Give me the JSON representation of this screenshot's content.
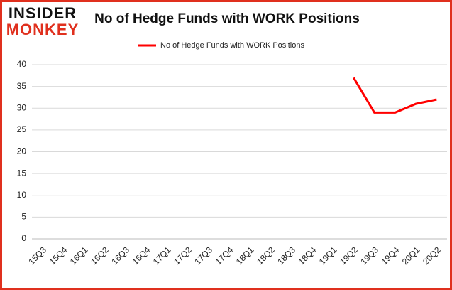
{
  "logo": {
    "line1": "INSIDER",
    "line2": "MONKEY"
  },
  "chart_data": {
    "type": "line",
    "title": "No of Hedge Funds with WORK Positions",
    "categories": [
      "15Q3",
      "15Q4",
      "16Q1",
      "16Q2",
      "16Q3",
      "16Q4",
      "17Q1",
      "17Q2",
      "17Q3",
      "17Q4",
      "18Q1",
      "18Q2",
      "18Q3",
      "18Q4",
      "19Q1",
      "19Q2",
      "19Q3",
      "19Q4",
      "20Q1",
      "20Q2"
    ],
    "series": [
      {
        "name": "No of Hedge Funds with WORK Positions",
        "color": "#ff0000",
        "values": [
          null,
          null,
          null,
          null,
          null,
          null,
          null,
          null,
          null,
          null,
          null,
          null,
          null,
          null,
          null,
          37,
          29,
          29,
          31,
          32
        ]
      }
    ],
    "ylim": [
      0,
      40
    ],
    "yticks": [
      0,
      5,
      10,
      15,
      20,
      25,
      30,
      35,
      40
    ],
    "grid": true,
    "legend": "top"
  }
}
